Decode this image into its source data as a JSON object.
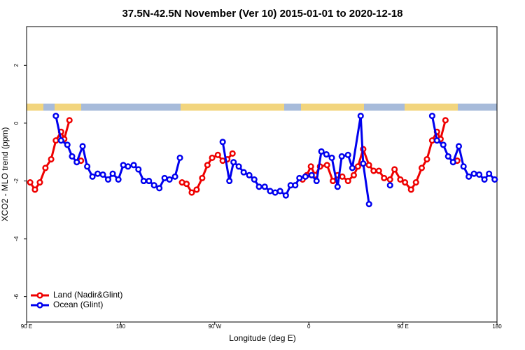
{
  "chart_data": {
    "type": "line",
    "title": "37.5N-42.5N November (Ver 10)   2015-01-01 to 2020-12-18",
    "x_label": "Longitude (deg E)",
    "y_label": "XCO2 - MLO trend (ppm)",
    "xlim": [
      90,
      540
    ],
    "xticks": [
      {
        "value": 90,
        "label": "90 E"
      },
      180,
      {
        "value": 270,
        "label": "90 W"
      },
      {
        "value": 360,
        "label": "0"
      },
      {
        "value": 450,
        "label": "90 E"
      },
      {
        "value": 540,
        "label": "180"
      }
    ],
    "ylim": [
      -6.88,
      3.34
    ],
    "yticks": [
      2,
      0,
      -2,
      -4,
      -6
    ],
    "legend": "bottom-left",
    "series": [
      {
        "name": "Land (Nadir&Glint)",
        "color": "#ee0000",
        "x": [
          93.4,
          98,
          102.7,
          108,
          113.5,
          118,
          123,
          126,
          131,
          null,
          142,
          null,
          238.7,
          243,
          248,
          252.7,
          258,
          263,
          267.5,
          273,
          277.6,
          282,
          287,
          null,
          354,
          358,
          362,
          366,
          370.7,
          377.4,
          383,
          387.5,
          392,
          397.5,
          403,
          407,
          412,
          417.5,
          422,
          427,
          432,
          437.7,
          442,
          447.5,
          452,
          457.8,
          462.5,
          468,
          473,
          478,
          482.6,
          486,
          490.7,
          null,
          502
        ],
        "values": [
          -2.05,
          -2.3,
          -2.05,
          -1.55,
          -1.25,
          -0.6,
          -0.3,
          -0.55,
          0.1,
          null,
          -1.3,
          null,
          -2.05,
          -2.1,
          -2.4,
          -2.3,
          -1.9,
          -1.45,
          -1.2,
          -1.1,
          -1.3,
          -1.25,
          -1.05,
          null,
          -1.95,
          -1.8,
          -1.5,
          -1.8,
          -1.5,
          -1.45,
          -2.0,
          -1.8,
          -1.85,
          -2.0,
          -1.8,
          -1.5,
          -0.9,
          -1.45,
          -1.65,
          -1.65,
          -1.9,
          -1.95,
          -1.6,
          -1.95,
          -2.05,
          -2.3,
          -2.05,
          -1.55,
          -1.25,
          -0.6,
          -0.3,
          -0.55,
          0.1,
          null,
          -1.3
        ]
      },
      {
        "name": "Ocean (Glint)",
        "color": "#0000ee",
        "x": [
          118,
          123,
          129,
          133.5,
          138,
          143.6,
          148,
          153,
          158,
          163,
          168,
          172.4,
          177.8,
          182.5,
          187,
          192.5,
          197,
          202,
          207,
          212,
          217,
          222,
          226.7,
          232,
          236.7,
          null,
          277.6,
          284,
          288,
          293,
          297.7,
          303,
          307.8,
          312.4,
          317.8,
          323,
          327.8,
          332.5,
          338,
          342.6,
          347,
          351,
          356.7,
          362.7,
          367.4,
          372,
          376.8,
          382,
          387.5,
          391.5,
          397.5,
          401.6,
          409.6,
          412,
          417.6,
          null,
          437.7,
          null,
          478,
          482.6,
          488.6,
          493.3,
          498,
          503.5,
          508,
          513,
          518,
          523,
          528,
          532.4,
          537.8
        ],
        "values": [
          0.25,
          -0.6,
          -0.75,
          -1.15,
          -1.35,
          -0.8,
          -1.5,
          -1.85,
          -1.75,
          -1.78,
          -1.95,
          -1.75,
          -1.95,
          -1.45,
          -1.5,
          -1.45,
          -1.6,
          -2.0,
          -2.0,
          -2.15,
          -2.25,
          -1.9,
          -1.95,
          -1.85,
          -1.2,
          null,
          -0.65,
          -2.0,
          -1.35,
          -1.5,
          -1.7,
          -1.8,
          -1.95,
          -2.2,
          -2.2,
          -2.35,
          -2.4,
          -2.35,
          -2.5,
          -2.15,
          -2.15,
          -1.9,
          -1.85,
          -1.8,
          -2.0,
          -0.98,
          -1.08,
          -1.2,
          -2.2,
          -1.15,
          -1.1,
          -1.55,
          0.25,
          -1.4,
          -2.8,
          null,
          -2.15,
          null,
          0.25,
          -0.6,
          -0.75,
          -1.15,
          -1.35,
          -0.8,
          -1.5,
          -1.85,
          -1.75,
          -1.78,
          -1.95,
          -1.75,
          -1.95
        ]
      }
    ]
  }
}
